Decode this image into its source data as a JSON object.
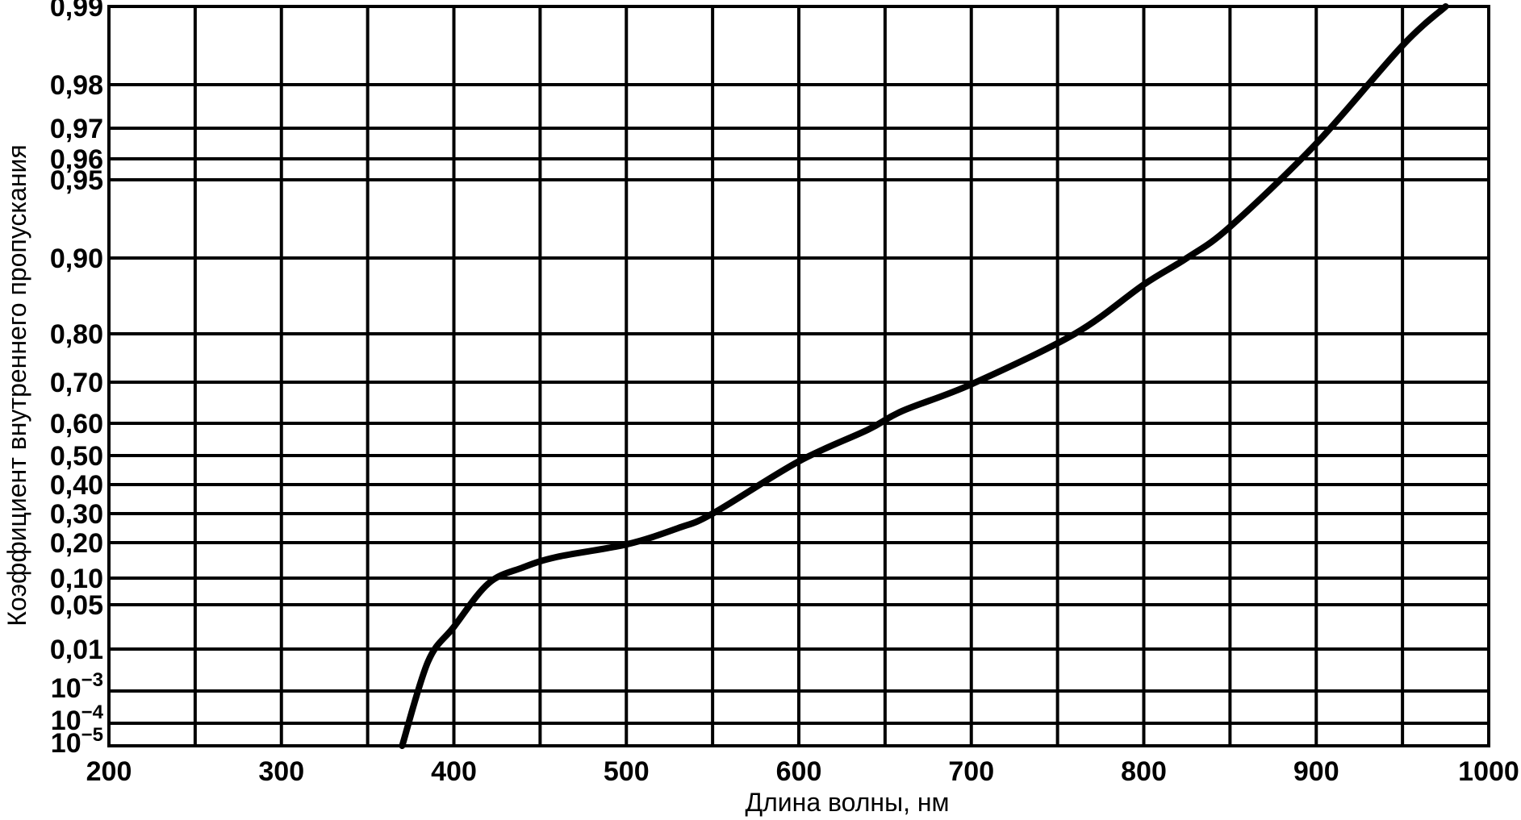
{
  "chart_data": {
    "type": "line",
    "xlabel": "Длина волны, нм",
    "ylabel": "Коэффициент внутреннего пропускания",
    "xlim": [
      200,
      1000
    ],
    "x_ticks": [
      200,
      300,
      400,
      500,
      600,
      700,
      800,
      900,
      1000
    ],
    "x_grid_step": 50,
    "y_scale": "nonlinear (tick values placed at fixed positions)",
    "y_ticks": [
      {
        "value": 1e-05,
        "label": "10",
        "exp": "−5"
      },
      {
        "value": 0.0001,
        "label": "10",
        "exp": "−4"
      },
      {
        "value": 0.001,
        "label": "10",
        "exp": "−3"
      },
      {
        "value": 0.01,
        "label": "0,01"
      },
      {
        "value": 0.05,
        "label": "0,05"
      },
      {
        "value": 0.1,
        "label": "0,10"
      },
      {
        "value": 0.2,
        "label": "0,20"
      },
      {
        "value": 0.3,
        "label": "0,30"
      },
      {
        "value": 0.4,
        "label": "0,40"
      },
      {
        "value": 0.5,
        "label": "0,50"
      },
      {
        "value": 0.6,
        "label": "0,60"
      },
      {
        "value": 0.7,
        "label": "0,70"
      },
      {
        "value": 0.8,
        "label": "0,80"
      },
      {
        "value": 0.9,
        "label": "0,90"
      },
      {
        "value": 0.95,
        "label": "0,95"
      },
      {
        "value": 0.96,
        "label": "0,96"
      },
      {
        "value": 0.97,
        "label": "0,97"
      },
      {
        "value": 0.98,
        "label": "0,98"
      },
      {
        "value": 0.99,
        "label": "0,99"
      }
    ],
    "grid": true,
    "series": [
      {
        "x": [
          370,
          385,
          400,
          420,
          440,
          460,
          500,
          530,
          550,
          600,
          640,
          660,
          700,
          760,
          800,
          825,
          850,
          900,
          950,
          975
        ],
        "y": [
          1e-05,
          0.005,
          0.03,
          0.09,
          0.13,
          0.16,
          0.195,
          0.25,
          0.3,
          0.48,
          0.58,
          0.63,
          0.695,
          0.8,
          0.865,
          0.9,
          0.92,
          0.965,
          0.985,
          0.99
        ]
      }
    ]
  }
}
